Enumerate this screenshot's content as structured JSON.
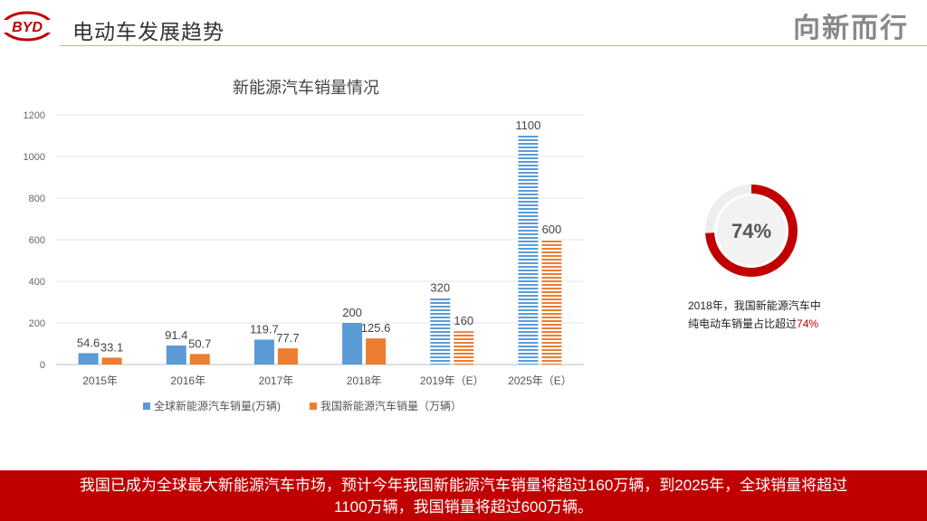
{
  "header": {
    "logo_text": "BYD",
    "title": "电动车发展趋势",
    "slogan": "向新而行"
  },
  "chart_data": {
    "type": "bar",
    "title": "新能源汽车销量情况",
    "categories": [
      "2015年",
      "2016年",
      "2017年",
      "2018年",
      "2019年（E）",
      "2025年（E）"
    ],
    "series": [
      {
        "name": "全球新能源汽车销量(万辆)",
        "values": [
          54.6,
          91.4,
          119.7,
          200,
          320,
          1100
        ],
        "color": "#5b9bd5"
      },
      {
        "name": "我国新能源汽车销量（万辆）",
        "values": [
          33.1,
          50.7,
          77.7,
          125.6,
          160,
          600
        ],
        "color": "#ed7d31"
      }
    ],
    "estimated": [
      false,
      false,
      false,
      false,
      true,
      true
    ],
    "ylim": [
      0,
      1200
    ],
    "yticks": [
      0,
      200,
      400,
      600,
      800,
      1000,
      1200
    ],
    "grid": true,
    "legend": "bottom"
  },
  "stat": {
    "percent_label": "74%",
    "percent_value": 74,
    "color": "#c00000",
    "caption_line1": "2018年，我国新能源汽车中",
    "caption_line2_prefix": "纯电动车销量占比超过",
    "caption_line2_highlight": "74%"
  },
  "banner": {
    "line1": "我国已成为全球最大新能源汽车市场，预计今年我国新能源汽车销量将超过160万辆，到2025年，全球销量将超过",
    "line2": "1100万辆，我国销量将超过600万辆。"
  }
}
